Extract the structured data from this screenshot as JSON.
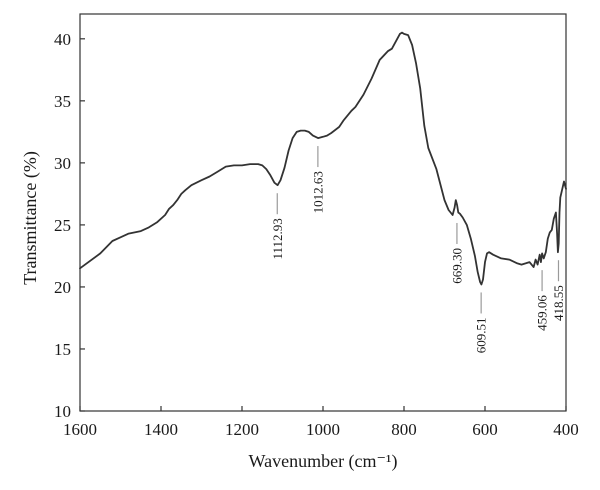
{
  "chart_data": {
    "type": "line",
    "title": "",
    "xlabel": "Wavenumber (cm⁻¹)",
    "ylabel": "Transmittance (%)",
    "xlim": [
      1600,
      400
    ],
    "ylim": [
      10,
      42
    ],
    "x_reversed": true,
    "grid": false,
    "xticks": [
      1600,
      1400,
      1200,
      1000,
      800,
      600,
      400
    ],
    "yticks": [
      10,
      15,
      20,
      25,
      30,
      35,
      40
    ],
    "line_color": "#333333",
    "series": [
      {
        "x": [
          1600,
          1550,
          1520,
          1500,
          1480,
          1450,
          1430,
          1410,
          1390,
          1380,
          1370,
          1360,
          1350,
          1340,
          1325,
          1300,
          1280,
          1260,
          1240,
          1220,
          1200,
          1180,
          1160,
          1150,
          1140,
          1130,
          1120,
          1112,
          1105,
          1095,
          1085,
          1075,
          1065,
          1055,
          1045,
          1035,
          1025,
          1012,
          1000,
          990,
          980,
          960,
          950,
          930,
          920,
          900,
          880,
          860,
          840,
          830,
          820,
          810,
          805,
          800,
          790,
          780,
          770,
          760,
          750,
          740,
          720,
          700,
          690,
          680,
          675,
          672,
          669,
          666,
          662,
          655,
          645,
          635,
          625,
          618,
          612,
          609,
          605,
          600,
          595,
          590,
          580,
          560,
          540,
          520,
          510,
          500,
          490,
          480,
          475,
          470,
          465,
          462,
          459,
          455,
          450,
          445,
          440,
          435,
          430,
          425,
          422,
          420,
          418,
          416,
          414,
          410,
          405,
          400
        ],
        "y": [
          21.5,
          22.7,
          23.7,
          24.0,
          24.3,
          24.5,
          24.8,
          25.2,
          25.8,
          26.3,
          26.6,
          27.0,
          27.5,
          27.8,
          28.2,
          28.6,
          28.9,
          29.3,
          29.7,
          29.8,
          29.8,
          29.9,
          29.9,
          29.8,
          29.5,
          29.0,
          28.4,
          28.2,
          28.6,
          29.6,
          31.0,
          32.0,
          32.5,
          32.6,
          32.6,
          32.5,
          32.2,
          32.0,
          32.1,
          32.2,
          32.4,
          32.9,
          33.4,
          34.2,
          34.5,
          35.5,
          36.8,
          38.3,
          39.0,
          39.2,
          39.8,
          40.4,
          40.5,
          40.4,
          40.3,
          39.5,
          38.0,
          36.0,
          33.0,
          31.2,
          29.5,
          27.0,
          26.2,
          25.8,
          26.4,
          27.0,
          26.6,
          26.0,
          25.9,
          25.6,
          25.0,
          23.9,
          22.5,
          21.2,
          20.4,
          20.2,
          20.6,
          22.0,
          22.7,
          22.8,
          22.6,
          22.3,
          22.2,
          21.9,
          21.8,
          21.9,
          22.0,
          21.6,
          22.2,
          21.8,
          22.6,
          22.0,
          22.7,
          22.3,
          22.8,
          23.9,
          24.4,
          24.6,
          25.5,
          26.0,
          24.3,
          22.8,
          23.5,
          26.0,
          27.2,
          27.8,
          28.5,
          27.9
        ]
      }
    ],
    "annotations": [
      {
        "text": "1112.93",
        "x": 1112.93,
        "y": 28.2,
        "side": "below"
      },
      {
        "text": "1012.63",
        "x": 1012.63,
        "y": 32.0,
        "side": "below"
      },
      {
        "text": "669.30",
        "x": 669.3,
        "y": 25.8,
        "side": "below"
      },
      {
        "text": "609.51",
        "x": 609.51,
        "y": 20.2,
        "side": "below"
      },
      {
        "text": "459.06",
        "x": 459.06,
        "y": 22.0,
        "side": "below"
      },
      {
        "text": "418.55",
        "x": 418.55,
        "y": 22.8,
        "side": "below"
      }
    ]
  }
}
